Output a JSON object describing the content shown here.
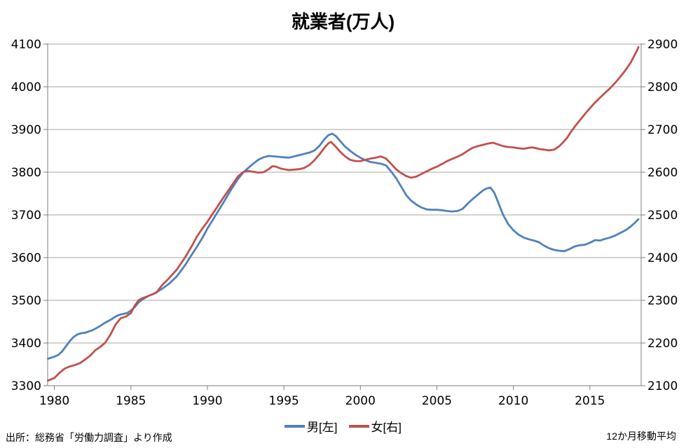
{
  "title": "就業者(万人)",
  "legend": {
    "male": "男[左]",
    "female": "女[右]"
  },
  "footnotes": {
    "source": "出所：総務省「労働力調査」より作成",
    "note": "12か月移動平均"
  },
  "colors": {
    "male": "#4F81BD",
    "female": "#C0504D",
    "grid": "#A6A6A6",
    "axis": "#7F7F7F"
  },
  "chart_data": {
    "type": "line",
    "title": "就業者(万人)",
    "note": "12か月移動平均 (12-month moving average)",
    "grid": "horizontal only",
    "legend_position": "bottom center",
    "x_axis": {
      "min": 1979.56,
      "max": 2018.35,
      "ticks": [
        1980,
        1985,
        1990,
        1995,
        2000,
        2005,
        2010,
        2015
      ]
    },
    "y_left": {
      "label_for": "男[左]",
      "min": 3300,
      "max": 4100,
      "step": 100,
      "ticks": [
        4100,
        4000,
        3900,
        3800,
        3700,
        3600,
        3500,
        3400,
        3300
      ]
    },
    "y_right": {
      "label_for": "女[右]",
      "min": 2100,
      "max": 2900,
      "step": 100,
      "ticks": [
        2900,
        2800,
        2700,
        2600,
        2500,
        2400,
        2300,
        2200,
        2100
      ]
    },
    "series": [
      {
        "name": "男[左]",
        "axis": "left",
        "color": "#4F81BD",
        "points": [
          [
            1979.58,
            3363
          ],
          [
            1980,
            3368
          ],
          [
            1980.25,
            3372
          ],
          [
            1980.5,
            3380
          ],
          [
            1980.75,
            3392
          ],
          [
            1981,
            3404
          ],
          [
            1981.25,
            3414
          ],
          [
            1981.5,
            3420
          ],
          [
            1981.75,
            3423
          ],
          [
            1982,
            3424
          ],
          [
            1982.25,
            3427
          ],
          [
            1982.5,
            3430
          ],
          [
            1982.75,
            3435
          ],
          [
            1983,
            3440
          ],
          [
            1983.25,
            3446
          ],
          [
            1983.5,
            3451
          ],
          [
            1983.75,
            3456
          ],
          [
            1984,
            3462
          ],
          [
            1984.25,
            3466
          ],
          [
            1984.5,
            3468
          ],
          [
            1984.75,
            3470
          ],
          [
            1985,
            3476
          ],
          [
            1985.25,
            3484
          ],
          [
            1985.5,
            3495
          ],
          [
            1985.75,
            3502
          ],
          [
            1986,
            3507
          ],
          [
            1986.25,
            3512
          ],
          [
            1986.5,
            3515
          ],
          [
            1987,
            3526
          ],
          [
            1987.5,
            3539
          ],
          [
            1988,
            3556
          ],
          [
            1988.5,
            3580
          ],
          [
            1989,
            3608
          ],
          [
            1989.33,
            3626
          ],
          [
            1989.67,
            3646
          ],
          [
            1990,
            3668
          ],
          [
            1990.5,
            3697
          ],
          [
            1991,
            3726
          ],
          [
            1991.5,
            3756
          ],
          [
            1992,
            3784
          ],
          [
            1992.33,
            3799
          ],
          [
            1992.67,
            3810
          ],
          [
            1993,
            3820
          ],
          [
            1993.33,
            3829
          ],
          [
            1993.67,
            3835
          ],
          [
            1994,
            3838
          ],
          [
            1994.33,
            3837
          ],
          [
            1994.67,
            3836
          ],
          [
            1995,
            3835
          ],
          [
            1995.33,
            3834
          ],
          [
            1995.67,
            3837
          ],
          [
            1996,
            3840
          ],
          [
            1996.33,
            3843
          ],
          [
            1996.67,
            3846
          ],
          [
            1997,
            3851
          ],
          [
            1997.33,
            3862
          ],
          [
            1997.67,
            3878
          ],
          [
            1997.92,
            3887
          ],
          [
            1998.17,
            3890
          ],
          [
            1998.42,
            3884
          ],
          [
            1998.75,
            3870
          ],
          [
            1999,
            3860
          ],
          [
            1999.33,
            3850
          ],
          [
            1999.67,
            3841
          ],
          [
            2000,
            3834
          ],
          [
            2000.33,
            3828
          ],
          [
            2000.67,
            3824
          ],
          [
            2001,
            3822
          ],
          [
            2001.33,
            3820
          ],
          [
            2001.67,
            3816
          ],
          [
            2002,
            3802
          ],
          [
            2002.33,
            3786
          ],
          [
            2002.67,
            3766
          ],
          [
            2003,
            3746
          ],
          [
            2003.33,
            3733
          ],
          [
            2003.67,
            3724
          ],
          [
            2004,
            3717
          ],
          [
            2004.33,
            3713
          ],
          [
            2004.67,
            3712
          ],
          [
            2005,
            3712
          ],
          [
            2005.33,
            3711
          ],
          [
            2005.67,
            3709
          ],
          [
            2006,
            3708
          ],
          [
            2006.33,
            3709
          ],
          [
            2006.67,
            3714
          ],
          [
            2007,
            3726
          ],
          [
            2007.33,
            3737
          ],
          [
            2007.67,
            3747
          ],
          [
            2008,
            3757
          ],
          [
            2008.25,
            3762
          ],
          [
            2008.5,
            3764
          ],
          [
            2008.75,
            3752
          ],
          [
            2009,
            3730
          ],
          [
            2009.33,
            3700
          ],
          [
            2009.67,
            3678
          ],
          [
            2010,
            3664
          ],
          [
            2010.33,
            3654
          ],
          [
            2010.67,
            3647
          ],
          [
            2011,
            3643
          ],
          [
            2011.33,
            3640
          ],
          [
            2011.67,
            3636
          ],
          [
            2012,
            3628
          ],
          [
            2012.33,
            3622
          ],
          [
            2012.67,
            3618
          ],
          [
            2013,
            3616
          ],
          [
            2013.33,
            3615
          ],
          [
            2013.67,
            3620
          ],
          [
            2014,
            3626
          ],
          [
            2014.33,
            3629
          ],
          [
            2014.67,
            3630
          ],
          [
            2015,
            3635
          ],
          [
            2015.33,
            3641
          ],
          [
            2015.67,
            3640
          ],
          [
            2016,
            3644
          ],
          [
            2016.33,
            3647
          ],
          [
            2016.67,
            3652
          ],
          [
            2017,
            3658
          ],
          [
            2017.33,
            3664
          ],
          [
            2017.67,
            3673
          ],
          [
            2017.92,
            3681
          ],
          [
            2018.17,
            3690
          ]
        ]
      },
      {
        "name": "女[右]",
        "axis": "right",
        "color": "#C0504D",
        "points": [
          [
            1979.58,
            2112
          ],
          [
            1980,
            2118
          ],
          [
            1980.33,
            2130
          ],
          [
            1980.67,
            2140
          ],
          [
            1981,
            2145
          ],
          [
            1981.33,
            2148
          ],
          [
            1981.67,
            2153
          ],
          [
            1982,
            2161
          ],
          [
            1982.33,
            2170
          ],
          [
            1982.67,
            2183
          ],
          [
            1983,
            2191
          ],
          [
            1983.33,
            2201
          ],
          [
            1983.67,
            2220
          ],
          [
            1984,
            2243
          ],
          [
            1984.33,
            2258
          ],
          [
            1984.67,
            2262
          ],
          [
            1985,
            2270
          ],
          [
            1985.25,
            2287
          ],
          [
            1985.5,
            2300
          ],
          [
            1985.75,
            2305
          ],
          [
            1986,
            2308
          ],
          [
            1986.33,
            2313
          ],
          [
            1986.67,
            2318
          ],
          [
            1987,
            2334
          ],
          [
            1987.5,
            2352
          ],
          [
            1988,
            2372
          ],
          [
            1988.5,
            2398
          ],
          [
            1989,
            2428
          ],
          [
            1989.33,
            2450
          ],
          [
            1989.67,
            2468
          ],
          [
            1990,
            2484
          ],
          [
            1990.33,
            2502
          ],
          [
            1990.67,
            2520
          ],
          [
            1991,
            2538
          ],
          [
            1991.5,
            2564
          ],
          [
            1992,
            2590
          ],
          [
            1992.33,
            2600
          ],
          [
            1992.67,
            2603
          ],
          [
            1993,
            2601
          ],
          [
            1993.33,
            2599
          ],
          [
            1993.67,
            2600
          ],
          [
            1994,
            2607
          ],
          [
            1994.25,
            2614
          ],
          [
            1994.5,
            2613
          ],
          [
            1994.75,
            2609
          ],
          [
            1995,
            2607
          ],
          [
            1995.33,
            2605
          ],
          [
            1995.67,
            2606
          ],
          [
            1996,
            2607
          ],
          [
            1996.33,
            2610
          ],
          [
            1996.67,
            2617
          ],
          [
            1997,
            2628
          ],
          [
            1997.33,
            2642
          ],
          [
            1997.67,
            2658
          ],
          [
            1997.92,
            2668
          ],
          [
            1998.08,
            2671
          ],
          [
            1998.33,
            2662
          ],
          [
            1998.67,
            2648
          ],
          [
            1999,
            2637
          ],
          [
            1999.33,
            2629
          ],
          [
            1999.67,
            2626
          ],
          [
            2000,
            2626
          ],
          [
            2000.33,
            2629
          ],
          [
            2000.67,
            2632
          ],
          [
            2001,
            2634
          ],
          [
            2001.33,
            2637
          ],
          [
            2001.67,
            2632
          ],
          [
            2002,
            2620
          ],
          [
            2002.33,
            2607
          ],
          [
            2002.67,
            2598
          ],
          [
            2003,
            2591
          ],
          [
            2003.33,
            2587
          ],
          [
            2003.67,
            2590
          ],
          [
            2004,
            2596
          ],
          [
            2004.33,
            2602
          ],
          [
            2004.67,
            2608
          ],
          [
            2005,
            2613
          ],
          [
            2005.33,
            2619
          ],
          [
            2005.67,
            2626
          ],
          [
            2006,
            2631
          ],
          [
            2006.33,
            2636
          ],
          [
            2006.67,
            2642
          ],
          [
            2007,
            2650
          ],
          [
            2007.33,
            2657
          ],
          [
            2007.67,
            2661
          ],
          [
            2008,
            2664
          ],
          [
            2008.33,
            2667
          ],
          [
            2008.67,
            2669
          ],
          [
            2009,
            2665
          ],
          [
            2009.33,
            2661
          ],
          [
            2009.67,
            2659
          ],
          [
            2010,
            2658
          ],
          [
            2010.33,
            2656
          ],
          [
            2010.67,
            2655
          ],
          [
            2011,
            2657
          ],
          [
            2011.25,
            2658
          ],
          [
            2011.5,
            2656
          ],
          [
            2011.75,
            2654
          ],
          [
            2012,
            2653
          ],
          [
            2012.33,
            2651
          ],
          [
            2012.67,
            2653
          ],
          [
            2013,
            2661
          ],
          [
            2013.25,
            2670
          ],
          [
            2013.5,
            2680
          ],
          [
            2013.75,
            2694
          ],
          [
            2014,
            2706
          ],
          [
            2014.33,
            2721
          ],
          [
            2014.67,
            2736
          ],
          [
            2015,
            2750
          ],
          [
            2015.33,
            2763
          ],
          [
            2015.67,
            2775
          ],
          [
            2016,
            2786
          ],
          [
            2016.33,
            2797
          ],
          [
            2016.67,
            2810
          ],
          [
            2017,
            2824
          ],
          [
            2017.33,
            2839
          ],
          [
            2017.67,
            2857
          ],
          [
            2017.92,
            2874
          ],
          [
            2018.08,
            2885
          ],
          [
            2018.17,
            2893
          ]
        ]
      }
    ]
  }
}
